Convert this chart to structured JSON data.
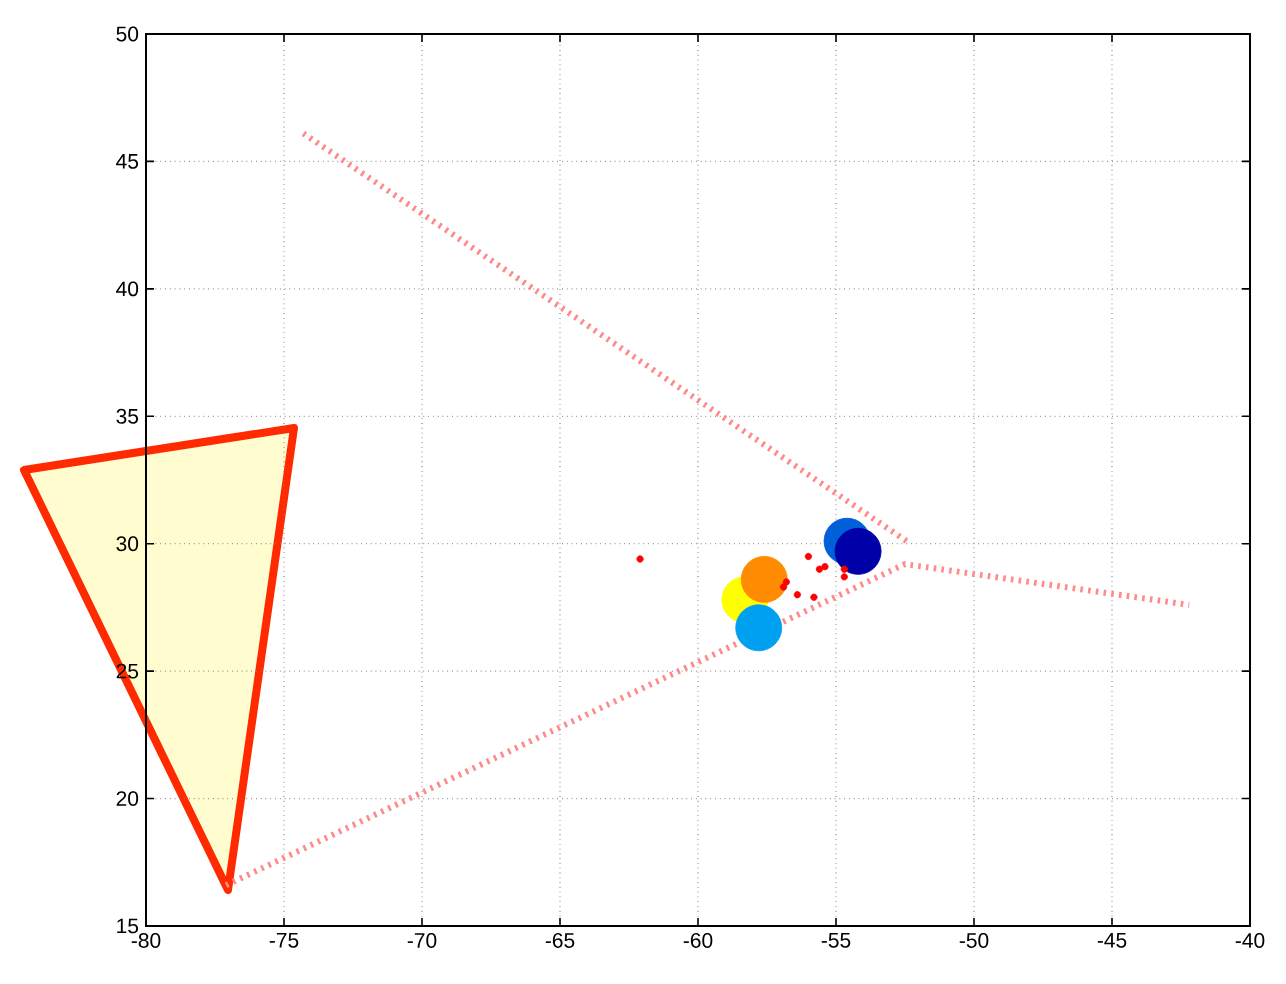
{
  "chart_data": {
    "type": "scatter",
    "xlim": [
      -80,
      -40
    ],
    "ylim": [
      15,
      50
    ],
    "xticks": [
      -80,
      -75,
      -70,
      -65,
      -60,
      -55,
      -50,
      -45,
      -40
    ],
    "yticks": [
      15,
      20,
      25,
      30,
      35,
      40,
      45,
      50
    ],
    "grid": true,
    "marker": "circle",
    "series": [
      {
        "type": "line",
        "color": "#ff8a8a",
        "line_style": "dotted",
        "marker": "none",
        "x": [
          -74.3,
          -52.3
        ],
        "values": [
          46.1,
          30.0
        ]
      },
      {
        "type": "line",
        "color": "#ff8a8a",
        "line_style": "dotted",
        "marker": "none",
        "x": [
          -77.1,
          -52.5,
          -42.2
        ],
        "values": [
          16.6,
          29.2,
          27.6
        ]
      },
      {
        "type": "bubble",
        "color": "#ffff00",
        "x": [
          -58.3
        ],
        "values": [
          27.8
        ],
        "sizes": [
          1
        ]
      },
      {
        "type": "bubble",
        "color": "#ff8c00",
        "x": [
          -57.6
        ],
        "values": [
          28.6
        ],
        "sizes": [
          1
        ]
      },
      {
        "type": "bubble",
        "color": "#00a0f0",
        "x": [
          -57.8
        ],
        "values": [
          26.7
        ],
        "sizes": [
          1
        ]
      },
      {
        "type": "bubble",
        "color": "#0060d8",
        "x": [
          -54.6
        ],
        "values": [
          30.1
        ],
        "sizes": [
          1
        ]
      },
      {
        "type": "bubble",
        "color": "#0000a8",
        "x": [
          -54.2
        ],
        "values": [
          29.7
        ],
        "sizes": [
          1
        ]
      },
      {
        "color": "#ff0000",
        "x": [
          -62.1,
          -56.0,
          -55.6,
          -55.4,
          -54.7,
          -54.7,
          -56.8,
          -56.9,
          -56.4,
          -55.8
        ],
        "values": [
          29.4,
          29.5,
          29.0,
          29.1,
          29.0,
          28.7,
          28.5,
          28.3,
          28.0,
          27.9
        ]
      }
    ]
  }
}
